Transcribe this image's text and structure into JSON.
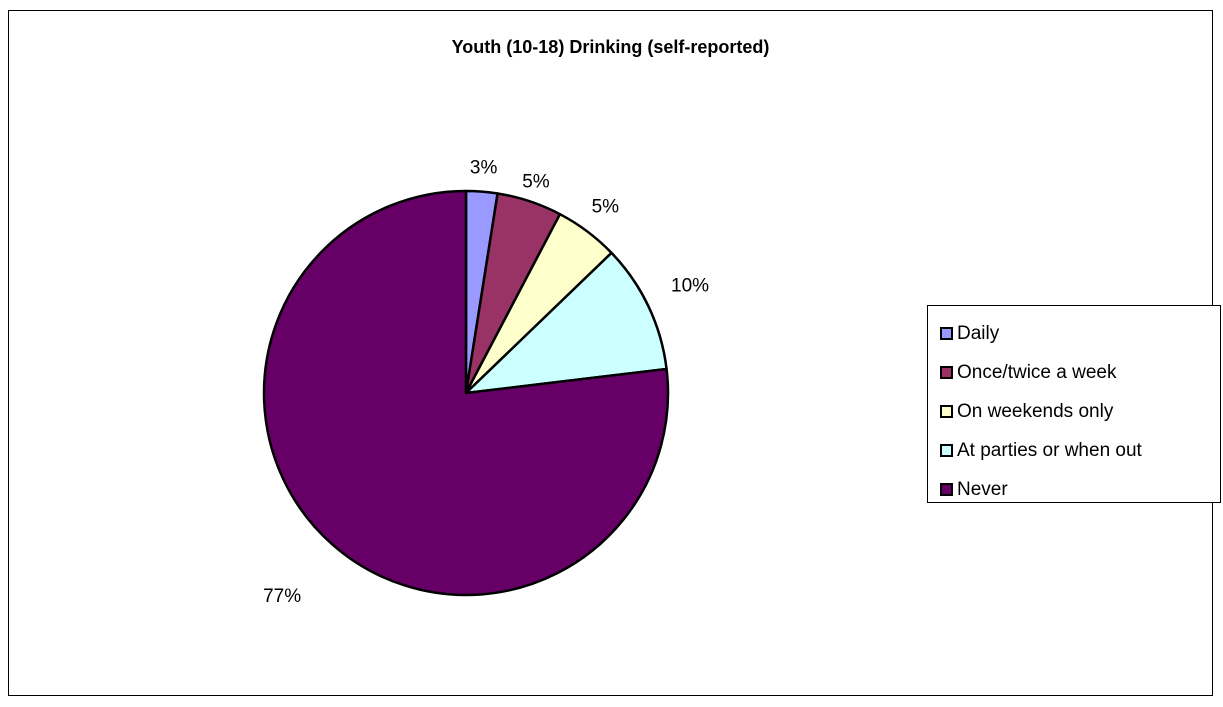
{
  "chart_data": {
    "type": "pie",
    "title": "Youth (10-18) Drinking (self-reported)",
    "categories": [
      "Daily",
      "Once/twice a week",
      "On weekends only",
      "At parties or when out",
      "Never"
    ],
    "values": [
      2.5,
      5.2,
      5.1,
      10.3,
      76.9
    ],
    "data_labels": [
      "3%",
      "5%",
      "5%",
      "10%",
      "77%"
    ],
    "colors": [
      "#9999ff",
      "#993366",
      "#ffffcc",
      "#ccffff",
      "#660066"
    ],
    "legend_position": "right"
  }
}
